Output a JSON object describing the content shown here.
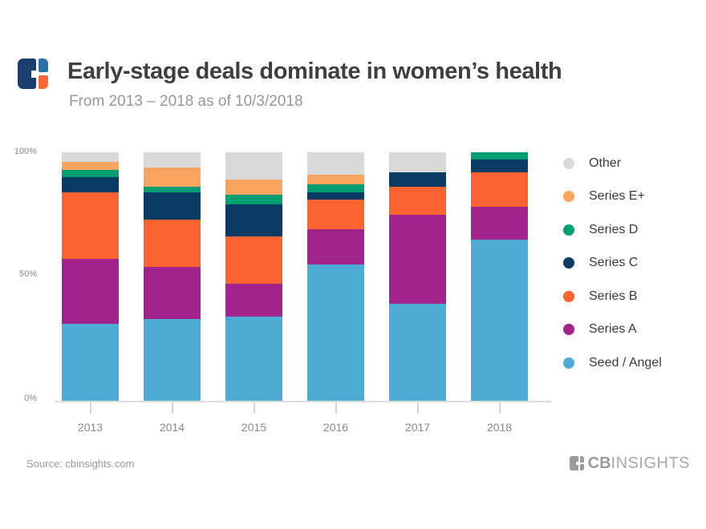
{
  "header": {
    "title": "Early-stage deals dominate in women’s health",
    "subtitle": "From 2013 – 2018 as of 10/3/2018"
  },
  "chart_data": {
    "type": "bar",
    "variant": "stacked-100-percent",
    "title": "Early-stage deals dominate in women’s health",
    "subtitle": "From 2013 – 2018 as of 10/3/2018",
    "xlabel": "",
    "ylabel": "",
    "ylim": [
      0,
      100
    ],
    "unit": "%",
    "grid": false,
    "legend_position": "right",
    "categories": [
      "2013",
      "2014",
      "2015",
      "2016",
      "2017",
      "2018"
    ],
    "y_ticks": [
      "0%",
      "50%",
      "100%"
    ],
    "series": [
      {
        "name": "Seed / Angel",
        "color": "#4dabd4",
        "values": [
          31,
          33,
          34,
          55,
          39,
          65
        ]
      },
      {
        "name": "Series A",
        "color": "#a2238b",
        "values": [
          26,
          21,
          13,
          14,
          36,
          13
        ]
      },
      {
        "name": "Series B",
        "color": "#fb6330",
        "values": [
          27,
          19,
          19,
          12,
          11,
          14
        ]
      },
      {
        "name": "Series C",
        "color": "#0b3a64",
        "values": [
          6,
          11,
          13,
          3,
          6,
          5
        ]
      },
      {
        "name": "Series D",
        "color": "#009e73",
        "values": [
          3,
          2,
          4,
          3,
          0,
          3
        ]
      },
      {
        "name": "Series E+",
        "color": "#f9a55f",
        "values": [
          3,
          8,
          6,
          4,
          0,
          0
        ]
      },
      {
        "name": "Other",
        "color": "#d9d9d9",
        "values": [
          4,
          6,
          11,
          9,
          8,
          0
        ]
      }
    ],
    "legend_order_top_to_bottom": [
      "Other",
      "Series E+",
      "Series D",
      "Series C",
      "Series B",
      "Series A",
      "Seed / Angel"
    ]
  },
  "footer": {
    "source": "Source: cbinsights.com",
    "brand_cb": "CB",
    "brand_insights": "INSIGHTS"
  }
}
